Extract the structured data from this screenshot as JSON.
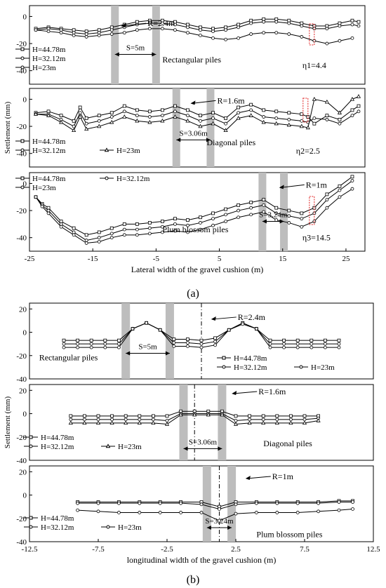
{
  "figure_label_a": "(a)",
  "figure_label_b": "(b)",
  "chart_data": [
    {
      "type": "line",
      "panel": "a-top",
      "ylabel": "",
      "xlim": [
        -25,
        28
      ],
      "ylim": [
        -50,
        8
      ],
      "yticks": [
        0,
        -20,
        -40
      ],
      "legend": [
        "H=44.78m",
        "H=32.12m",
        "H=23m"
      ],
      "annotations": {
        "r": "R=2.4m",
        "s": "S=5m",
        "kind": "Rectangular piles",
        "eta": "η1=4.4"
      },
      "piles": [
        -11.5,
        -5
      ],
      "series": [
        {
          "name": "H=44.78m",
          "marker": "square",
          "x": [
            -24,
            -22,
            -20,
            -18,
            -16,
            -14,
            -12,
            -10,
            -8,
            -6,
            -4,
            -2,
            0,
            2,
            4,
            6,
            8,
            10,
            12,
            14,
            16,
            18,
            20,
            22,
            24,
            26,
            27
          ],
          "values": [
            -9,
            -8,
            -9,
            -10,
            -11,
            -10,
            -8,
            -6,
            -4,
            -3,
            -3,
            -4,
            -6,
            -8,
            -9,
            -8,
            -6,
            -3,
            -2,
            -2,
            -3,
            -5,
            -7,
            -7,
            -5,
            -3,
            -4
          ]
        },
        {
          "name": "H=32.12m",
          "marker": "circle",
          "x": [
            -24,
            -22,
            -20,
            -18,
            -16,
            -14,
            -12,
            -10,
            -8,
            -6,
            -4,
            -2,
            0,
            2,
            4,
            6,
            8,
            10,
            12,
            14,
            16,
            18,
            20,
            22,
            24,
            26,
            27
          ],
          "values": [
            -10,
            -9,
            -10,
            -12,
            -13,
            -12,
            -10,
            -8,
            -6,
            -5,
            -5,
            -6,
            -8,
            -10,
            -11,
            -10,
            -8,
            -5,
            -4,
            -4,
            -5,
            -7,
            -9,
            -9,
            -7,
            -6,
            -7
          ]
        },
        {
          "name": "H=23m",
          "marker": "circle",
          "x": [
            -24,
            -22,
            -20,
            -18,
            -16,
            -14,
            -12,
            -10,
            -8,
            -6,
            -4,
            -2,
            0,
            2,
            4,
            6,
            8,
            10,
            12,
            14,
            16,
            18,
            20,
            22,
            24,
            26
          ],
          "values": [
            -10,
            -11,
            -12,
            -14,
            -15,
            -14,
            -13,
            -12,
            -10,
            -9,
            -9,
            -10,
            -12,
            -14,
            -16,
            -17,
            -16,
            -13,
            -12,
            -12,
            -13,
            -15,
            -18,
            -20,
            -18,
            -16
          ]
        }
      ]
    },
    {
      "type": "line",
      "panel": "a-mid",
      "ylabel": "Settlement (mm)",
      "xlim": [
        -25,
        28
      ],
      "ylim": [
        -50,
        8
      ],
      "yticks": [
        0,
        -20,
        -40
      ],
      "legend": [
        "H=44.78m",
        "H=32.12m",
        "H=23m"
      ],
      "annotations": {
        "r": "R=1.6m",
        "s": "S=3.06m",
        "kind": "Diagonal piles",
        "eta": "η2=2.5"
      },
      "piles": [
        -1.8,
        3.6
      ],
      "series": [
        {
          "name": "H=44.78m",
          "marker": "square",
          "x": [
            -24,
            -22,
            -20,
            -18,
            -17,
            -16,
            -14,
            -12,
            -10,
            -8,
            -6,
            -4,
            -2,
            0,
            2,
            4,
            6,
            8,
            10,
            12,
            14,
            16,
            18,
            19,
            20,
            22,
            24,
            26,
            27
          ],
          "values": [
            -10,
            -9,
            -12,
            -16,
            -6,
            -14,
            -12,
            -10,
            -5,
            -8,
            -9,
            -8,
            -5,
            -8,
            -12,
            -10,
            -14,
            -6,
            -4,
            -8,
            -9,
            -10,
            -11,
            -13,
            -18,
            -12,
            -15,
            -8,
            -5
          ]
        },
        {
          "name": "H=32.12m",
          "marker": "circle",
          "x": [
            -24,
            -22,
            -20,
            -18,
            -17,
            -16,
            -14,
            -12,
            -10,
            -8,
            -6,
            -4,
            -2,
            0,
            2,
            4,
            6,
            8,
            10,
            12,
            14,
            16,
            18,
            19,
            20,
            22,
            24,
            26,
            27
          ],
          "values": [
            -11,
            -11,
            -15,
            -20,
            -10,
            -18,
            -16,
            -13,
            -9,
            -12,
            -13,
            -12,
            -9,
            -12,
            -16,
            -14,
            -18,
            -10,
            -8,
            -13,
            -14,
            -15,
            -16,
            -17,
            -14,
            -15,
            -18,
            -12,
            -9
          ]
        },
        {
          "name": "H=23m",
          "marker": "triangle",
          "x": [
            -24,
            -22,
            -20,
            -18,
            -17,
            -16,
            -14,
            -12,
            -10,
            -8,
            -6,
            -4,
            -2,
            0,
            2,
            4,
            6,
            8,
            10,
            12,
            14,
            16,
            18,
            19,
            20,
            22,
            24,
            26,
            27
          ],
          "values": [
            -11,
            -12,
            -17,
            -23,
            -13,
            -22,
            -20,
            -17,
            -13,
            -16,
            -17,
            -16,
            -13,
            -16,
            -20,
            -18,
            -23,
            -14,
            -12,
            -17,
            -18,
            -19,
            -20,
            -21,
            0,
            -2,
            -10,
            0,
            2
          ]
        }
      ]
    },
    {
      "type": "line",
      "panel": "a-bot",
      "ylabel": "",
      "xlabel": "Lateral width of the gravel cushion (m)",
      "xlim": [
        -25,
        28
      ],
      "ylim": [
        -50,
        8
      ],
      "xticks": [
        -25,
        -15,
        -5,
        5,
        15,
        25
      ],
      "yticks": [
        0,
        -20,
        -40
      ],
      "legend": [
        "H=44.78m",
        "H=32.12m",
        "H=23m"
      ],
      "annotations": {
        "r": "R=1m",
        "s": "S=3.24m",
        "kind": "Plum blossom piles",
        "eta": "η3=14.5"
      },
      "piles": [
        11.8,
        15.2
      ],
      "series": [
        {
          "name": "H=44.78m",
          "marker": "square",
          "x": [
            -24,
            -23,
            -22,
            -20,
            -18,
            -16,
            -14,
            -12,
            -10,
            -8,
            -6,
            -4,
            -2,
            0,
            2,
            4,
            6,
            8,
            10,
            12,
            14,
            16,
            18,
            20,
            22,
            24,
            26
          ],
          "values": [
            -10,
            -15,
            -18,
            -28,
            -33,
            -38,
            -36,
            -33,
            -30,
            -30,
            -29,
            -28,
            -26,
            -27,
            -25,
            -22,
            -19,
            -16,
            -14,
            -12,
            -18,
            -20,
            -22,
            -18,
            -8,
            -2,
            5
          ]
        },
        {
          "name": "H=32.12m",
          "marker": "circle",
          "x": [
            -24,
            -23,
            -22,
            -20,
            -18,
            -16,
            -14,
            -12,
            -10,
            -8,
            -6,
            -4,
            -2,
            0,
            2,
            4,
            6,
            8,
            10,
            12,
            14,
            16,
            18,
            20,
            22,
            24,
            26
          ],
          "values": [
            -10,
            -16,
            -20,
            -30,
            -36,
            -42,
            -40,
            -37,
            -34,
            -34,
            -33,
            -32,
            -30,
            -31,
            -29,
            -26,
            -23,
            -20,
            -18,
            -16,
            -22,
            -24,
            -26,
            -22,
            -12,
            -5,
            2
          ]
        },
        {
          "name": "H=23m",
          "marker": "circle",
          "x": [
            -24,
            -23,
            -22,
            -20,
            -18,
            -16,
            -14,
            -12,
            -10,
            -8,
            -6,
            -4,
            -2,
            0,
            2,
            4,
            6,
            8,
            10,
            12,
            14,
            16,
            18,
            20,
            22,
            24,
            26
          ],
          "values": [
            -10,
            -17,
            -22,
            -32,
            -38,
            -44,
            -43,
            -40,
            -38,
            -38,
            -37,
            -36,
            -35,
            -36,
            -34,
            -31,
            -28,
            -25,
            -23,
            -21,
            -27,
            -29,
            -32,
            -28,
            -18,
            -10,
            -4
          ]
        }
      ]
    },
    {
      "type": "line",
      "panel": "b-top",
      "ylabel": "",
      "xlim": [
        -12.5,
        12.5
      ],
      "ylim": [
        -40,
        25
      ],
      "yticks": [
        20,
        0,
        -20,
        -40
      ],
      "legend": [
        "H=44.78m",
        "H=32.12m",
        "H=23m"
      ],
      "annotations": {
        "r": "R=2.4m",
        "s": "S=5m",
        "kind": "Rectangular piles"
      },
      "piles": [
        -5.5,
        -2.3
      ],
      "centerline": 0,
      "series": [
        {
          "name": "H=44.78m",
          "marker": "square",
          "x": [
            -10,
            -9,
            -8,
            -7,
            -6,
            -5,
            -4,
            -3,
            -2,
            -1,
            0,
            1,
            2,
            3,
            4,
            5,
            6,
            7,
            8,
            9,
            10
          ],
          "values": [
            -7,
            -7,
            -7,
            -7,
            -7,
            3,
            8,
            2,
            -6,
            -6,
            -7,
            -5,
            2,
            8,
            3,
            -7,
            -7,
            -7,
            -7,
            -7,
            -7
          ]
        },
        {
          "name": "H=32.12m",
          "marker": "circle",
          "x": [
            -10,
            -9,
            -8,
            -7,
            -6,
            -5,
            -4,
            -3,
            -2,
            -1,
            0,
            1,
            2,
            3,
            4,
            5,
            6,
            7,
            8,
            9,
            10
          ],
          "values": [
            -10,
            -10,
            -10,
            -10,
            -10,
            3,
            8,
            2,
            -9,
            -9,
            -10,
            -8,
            2,
            8,
            3,
            -10,
            -10,
            -10,
            -10,
            -10,
            -10
          ]
        },
        {
          "name": "H=23m",
          "marker": "circle",
          "x": [
            -10,
            -9,
            -8,
            -7,
            -6,
            -5,
            -4,
            -3,
            -2,
            -1,
            0,
            1,
            2,
            3,
            4,
            5,
            6,
            7,
            8,
            9,
            10
          ],
          "values": [
            -13,
            -13,
            -13,
            -13,
            -13,
            3,
            8,
            2,
            -12,
            -12,
            -13,
            -11,
            2,
            7,
            3,
            -13,
            -13,
            -13,
            -13,
            -13,
            -13
          ]
        }
      ]
    },
    {
      "type": "line",
      "panel": "b-mid",
      "ylabel": "Settlement (mm)",
      "xlim": [
        -12.5,
        12.5
      ],
      "ylim": [
        -40,
        25
      ],
      "yticks": [
        20,
        0,
        -20,
        -40
      ],
      "legend": [
        "H=44.78m",
        "H=32.12m",
        "H=23m"
      ],
      "annotations": {
        "r": "R=1.6m",
        "s": "S=3.06m",
        "kind": "Diagonal piles"
      },
      "piles": [
        -1.3,
        1.5
      ],
      "centerline": -0.5,
      "series": [
        {
          "name": "H=44.78m",
          "marker": "square",
          "x": [
            -9.5,
            -8.5,
            -7.5,
            -6.5,
            -5.5,
            -4.5,
            -3.5,
            -2.5,
            -1.5,
            -0.5,
            0.5,
            1.5,
            2.5,
            3.5,
            4.5,
            5.5,
            6.5,
            7.5,
            8.5
          ],
          "values": [
            -2,
            -2,
            -2,
            -2,
            -2,
            -2,
            -2,
            -2,
            2,
            2,
            2,
            2,
            -2,
            -2,
            -2,
            -2,
            -2,
            -2,
            -2
          ]
        },
        {
          "name": "H=32.12m",
          "marker": "circle",
          "x": [
            -9.5,
            -8.5,
            -7.5,
            -6.5,
            -5.5,
            -4.5,
            -3.5,
            -2.5,
            -1.5,
            -0.5,
            0.5,
            1.5,
            2.5,
            3.5,
            4.5,
            5.5,
            6.5,
            7.5,
            8.5
          ],
          "values": [
            -5,
            -5,
            -5,
            -5,
            -5,
            -5,
            -5,
            -6,
            0,
            0,
            0,
            0,
            -6,
            -5,
            -5,
            -5,
            -5,
            -5,
            -4
          ]
        },
        {
          "name": "H=23m",
          "marker": "triangle",
          "x": [
            -9.5,
            -8.5,
            -7.5,
            -6.5,
            -5.5,
            -4.5,
            -3.5,
            -2.5,
            -1.5,
            -0.5,
            0.5,
            1.5,
            2.5,
            3.5,
            4.5,
            5.5,
            6.5,
            7.5,
            8.5
          ],
          "values": [
            -8,
            -8,
            -8,
            -8,
            -8,
            -8,
            -8,
            -9,
            -1,
            -1,
            -1,
            -1,
            -9,
            -8,
            -8,
            -8,
            -8,
            -8,
            -6
          ]
        }
      ]
    },
    {
      "type": "line",
      "panel": "b-bot",
      "ylabel": "",
      "xlabel": "longitudinal width of  the gravel cushion (m)",
      "xlim": [
        -12.5,
        12.5
      ],
      "ylim": [
        -40,
        25
      ],
      "xticks": [
        -12.5,
        -7.5,
        -2.5,
        2.5,
        7.5,
        12.5
      ],
      "yticks": [
        20,
        0,
        -20,
        -40
      ],
      "legend": [
        "H=44.78m",
        "H=32.12m",
        "H=23m"
      ],
      "annotations": {
        "r": "R=1m",
        "s": "S=3.24m",
        "kind": "Plum blossom piles"
      },
      "piles": [
        0.4,
        2.2
      ],
      "centerline": 1.3,
      "series": [
        {
          "name": "H=44.78m",
          "marker": "square",
          "x": [
            -9,
            -7.5,
            -6,
            -4.5,
            -3,
            -1.5,
            0,
            1.3,
            2.5,
            4,
            5.5,
            7,
            8.5,
            10,
            11
          ],
          "values": [
            -6,
            -6,
            -6,
            -6,
            -6,
            -6,
            -6,
            -10,
            -6,
            -6,
            -6,
            -6,
            -6,
            -5,
            -5
          ]
        },
        {
          "name": "H=32.12m",
          "marker": "circle",
          "x": [
            -9,
            -7.5,
            -6,
            -4.5,
            -3,
            -1.5,
            0,
            1.3,
            2.5,
            4,
            5.5,
            7,
            8.5,
            10,
            11
          ],
          "values": [
            -7,
            -7,
            -7,
            -7,
            -7,
            -7,
            -8,
            -12,
            -8,
            -7,
            -7,
            -7,
            -7,
            -6,
            -6
          ]
        },
        {
          "name": "H=23m",
          "marker": "circle",
          "x": [
            -9,
            -7.5,
            -6,
            -4.5,
            -3,
            -1.5,
            0,
            1.3,
            2.5,
            4,
            5.5,
            7,
            8.5,
            10,
            11
          ],
          "values": [
            -13,
            -14,
            -15,
            -15,
            -15,
            -15,
            -15,
            -22,
            -16,
            -15,
            -15,
            -15,
            -14,
            -13,
            -12
          ]
        }
      ]
    }
  ]
}
